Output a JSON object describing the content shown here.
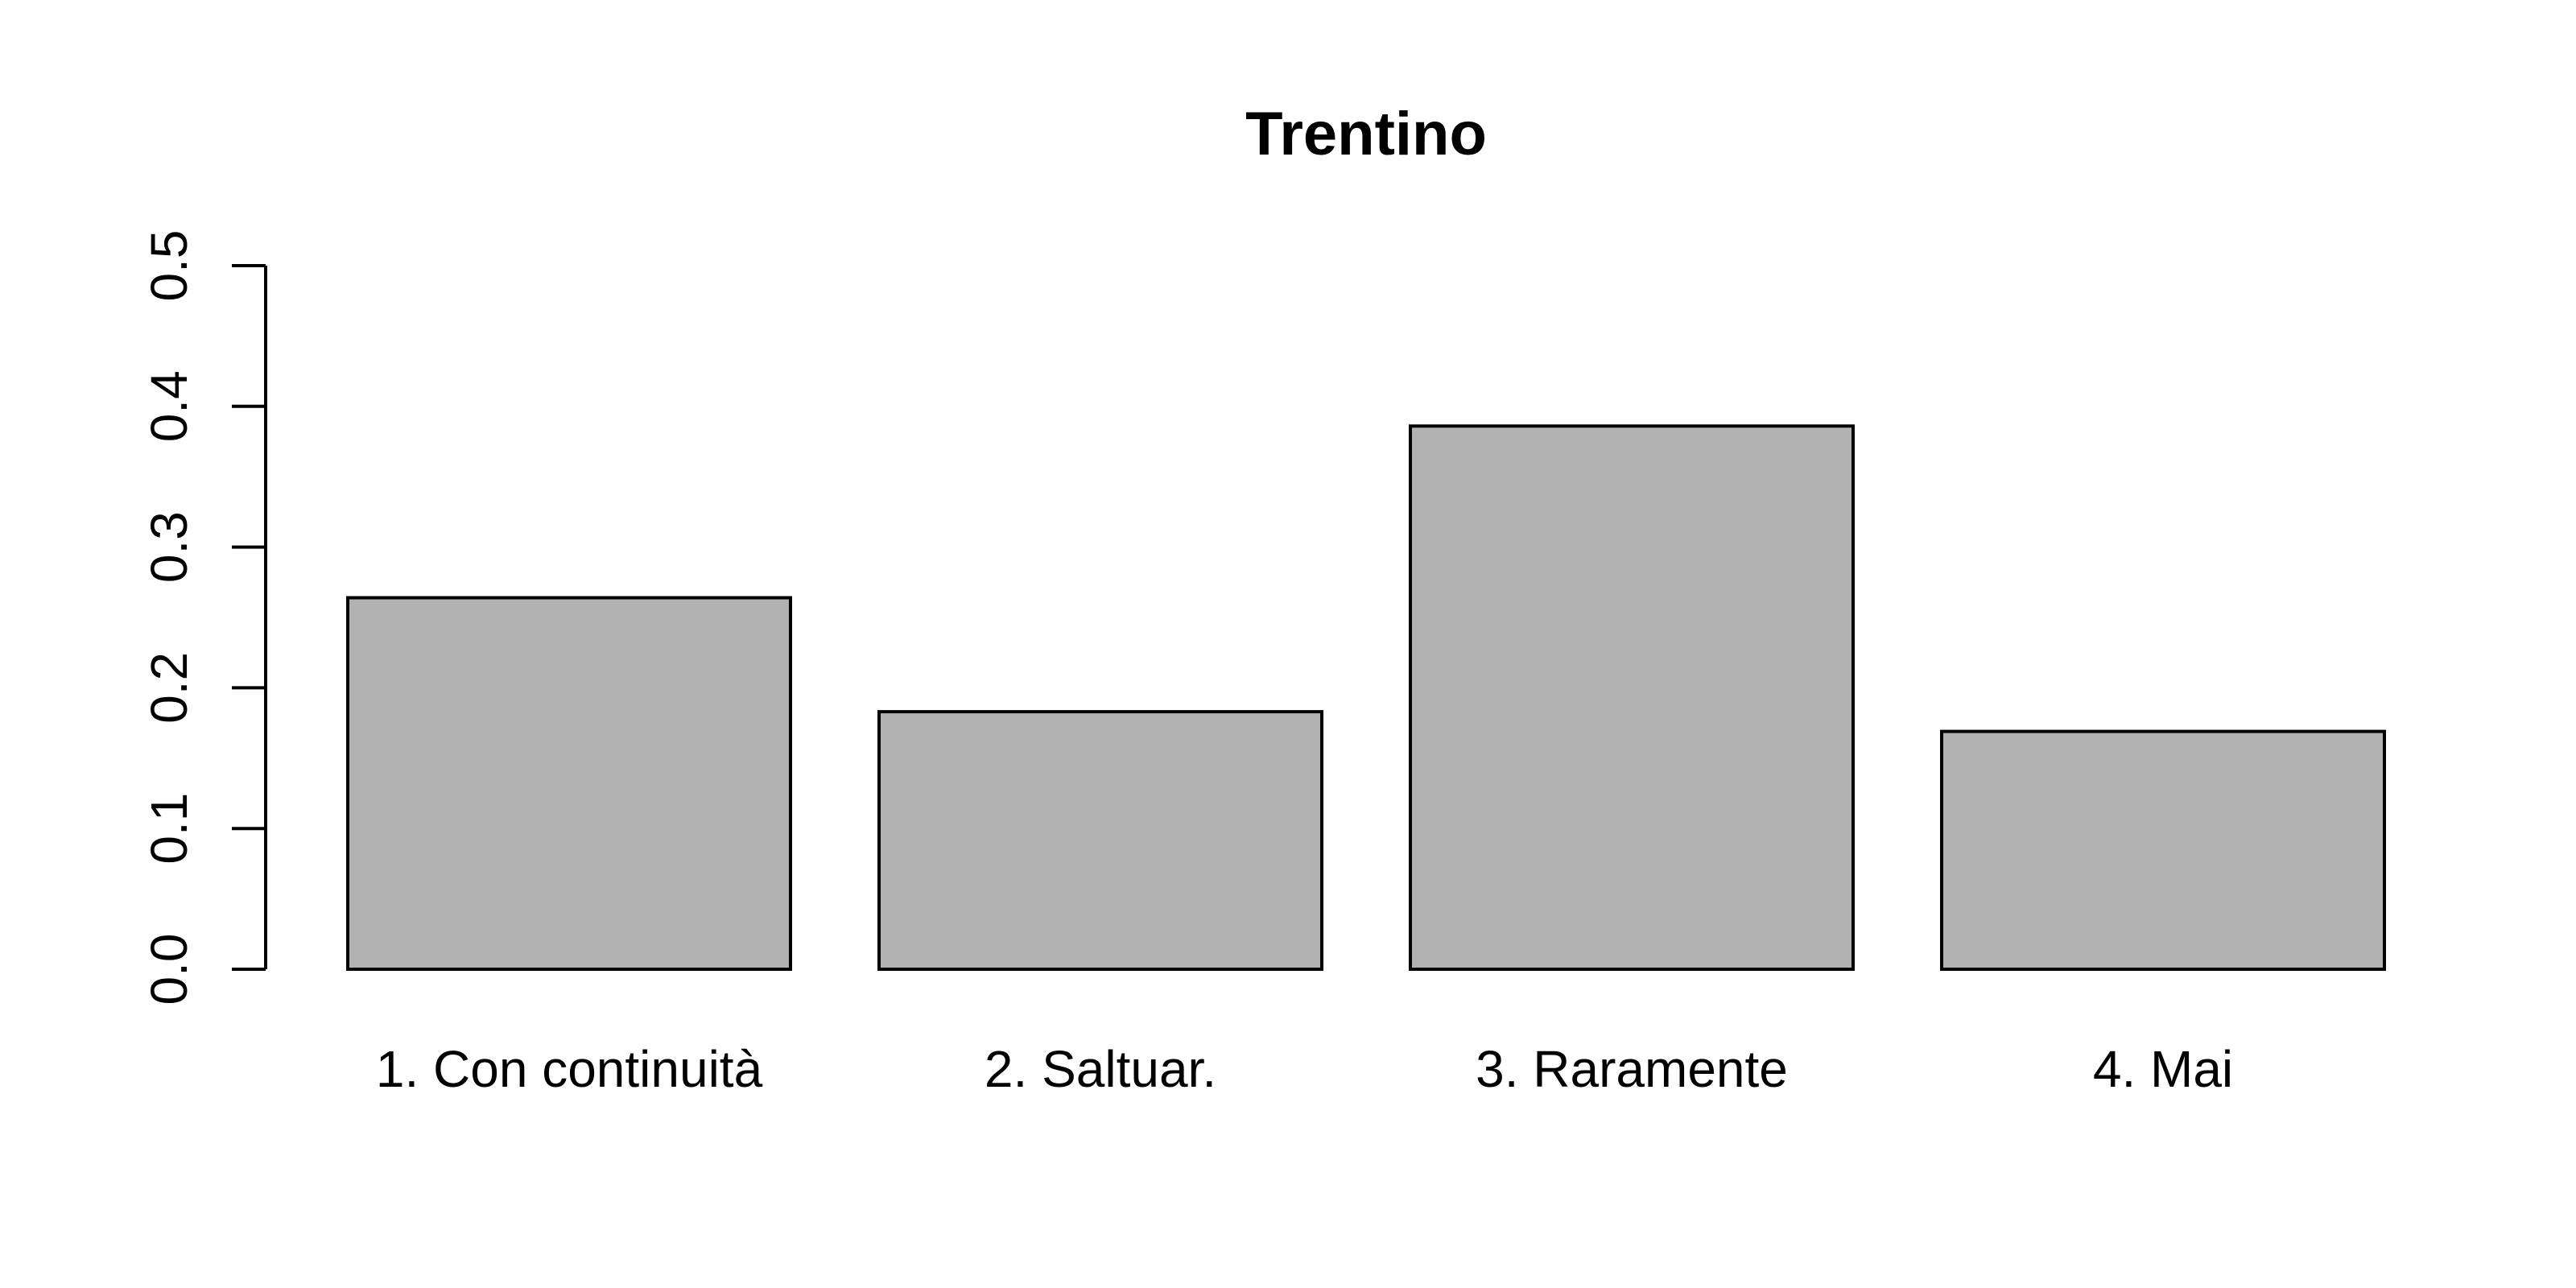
{
  "chart_data": {
    "type": "bar",
    "title": "Trentino",
    "xlabel": "",
    "ylabel": "",
    "categories": [
      "1. Con continuità",
      "2. Saltuar.",
      "3. Raramente",
      "4. Mai"
    ],
    "values": [
      0.264,
      0.183,
      0.386,
      0.169
    ],
    "ylim": [
      0,
      0.5
    ],
    "yticks": [
      "0.0",
      "0.1",
      "0.2",
      "0.3",
      "0.4",
      "0.5"
    ],
    "bar_color": "#b2b2b2",
    "bar_stroke": "#000000",
    "grid": false,
    "legend": "none"
  }
}
